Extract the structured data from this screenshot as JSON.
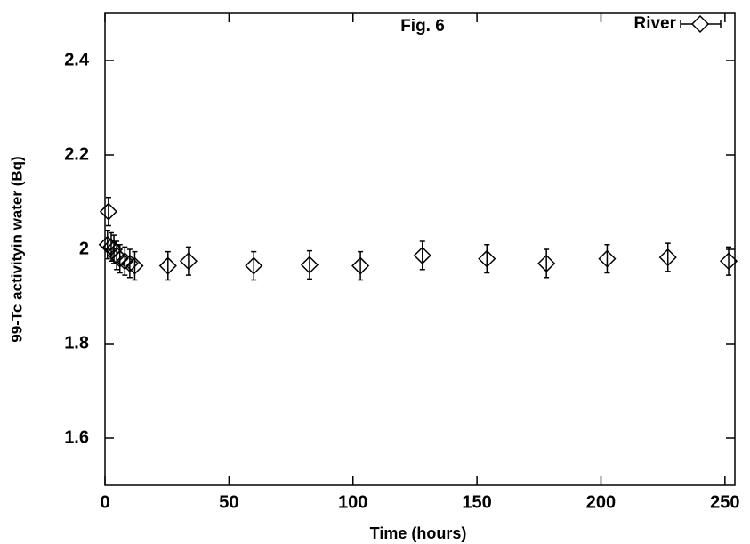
{
  "chart_data": {
    "type": "scatter",
    "title": "Fig. 6",
    "x_label": "Time (hours)",
    "y_label": "99-Tc activityin water (Bq)",
    "xlim": [
      0,
      254
    ],
    "ylim": [
      1.5,
      2.5
    ],
    "xticks": [
      0,
      50,
      100,
      150,
      200,
      250
    ],
    "yticks": [
      1.6,
      1.8,
      {
        "value": 2,
        "label": "2"
      },
      2.2,
      2.4
    ],
    "grid": false,
    "legend": "top-right",
    "series": [
      {
        "name": "River",
        "color": "#000000",
        "x": [
          1.4,
          1,
          2.5,
          3.6,
          4.7,
          6,
          8,
          10,
          12,
          25.4,
          33.7,
          60,
          82.5,
          103,
          128,
          154,
          178,
          202.5,
          227,
          251.5
        ],
        "values": [
          2.08,
          2.01,
          2.005,
          2.0,
          1.987,
          1.98,
          1.975,
          1.97,
          1.965,
          1.965,
          1.975,
          1.965,
          1.967,
          1.965,
          1.987,
          1.98,
          1.97,
          1.98,
          1.983,
          1.975
        ],
        "errors": [
          0.03,
          0.03,
          0.03,
          0.03,
          0.03,
          0.03,
          0.03,
          0.03,
          0.03,
          0.03,
          0.03,
          0.03,
          0.03,
          0.03,
          0.03,
          0.03,
          0.03,
          0.03,
          0.03,
          0.03
        ]
      }
    ]
  }
}
